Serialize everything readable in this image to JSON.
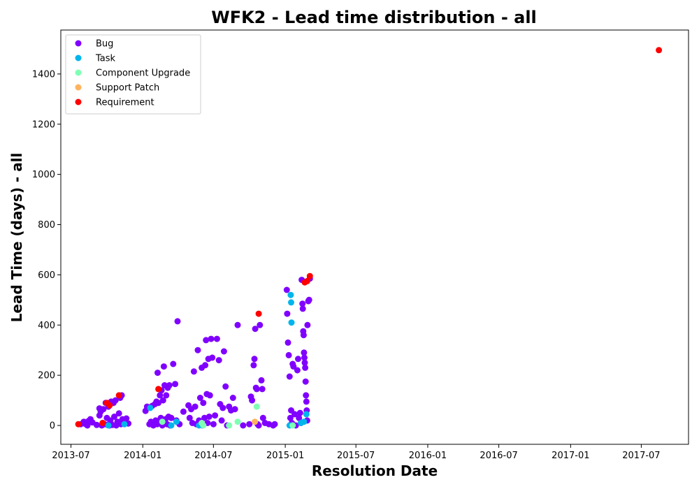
{
  "chart_data": {
    "type": "scatter",
    "title": "WFK2 - Lead time distribution - all",
    "xlabel": "Resolution Date",
    "ylabel": "Lead Time (days) - all",
    "x_is_date": true,
    "xlim": [
      "2013-06-05",
      "2017-10-30"
    ],
    "ylim": [
      -75,
      1575
    ],
    "x_ticks": [
      "2013-07",
      "2014-01",
      "2014-07",
      "2015-01",
      "2015-07",
      "2016-01",
      "2016-07",
      "2017-01",
      "2017-07"
    ],
    "y_ticks": [
      0,
      200,
      400,
      600,
      800,
      1000,
      1200,
      1400
    ],
    "grid": false,
    "legend_position": "top-left",
    "series": [
      {
        "name": "Bug",
        "color": "#8000ff",
        "points": [
          [
            "2013-07-26",
            5
          ],
          [
            "2013-08-03",
            15
          ],
          [
            "2013-08-08",
            5
          ],
          [
            "2013-08-12",
            0
          ],
          [
            "2013-08-15",
            18
          ],
          [
            "2013-08-20",
            25
          ],
          [
            "2013-08-25",
            12
          ],
          [
            "2013-09-05",
            2
          ],
          [
            "2013-09-12",
            40
          ],
          [
            "2013-09-12",
            68
          ],
          [
            "2013-09-15",
            55
          ],
          [
            "2013-09-18",
            0
          ],
          [
            "2013-09-20",
            10
          ],
          [
            "2013-09-22",
            65
          ],
          [
            "2013-09-25",
            5
          ],
          [
            "2013-09-28",
            90
          ],
          [
            "2013-10-01",
            30
          ],
          [
            "2013-10-03",
            2
          ],
          [
            "2013-10-05",
            75
          ],
          [
            "2013-10-08",
            0
          ],
          [
            "2013-10-10",
            20
          ],
          [
            "2013-10-12",
            95
          ],
          [
            "2013-10-15",
            2
          ],
          [
            "2013-10-18",
            90
          ],
          [
            "2013-10-20",
            35
          ],
          [
            "2013-10-23",
            100
          ],
          [
            "2013-10-25",
            0
          ],
          [
            "2013-10-28",
            15
          ],
          [
            "2013-11-01",
            48
          ],
          [
            "2013-11-04",
            110
          ],
          [
            "2013-11-06",
            5
          ],
          [
            "2013-11-08",
            120
          ],
          [
            "2013-11-10",
            25
          ],
          [
            "2013-11-15",
            10
          ],
          [
            "2013-11-20",
            28
          ],
          [
            "2013-11-25",
            8
          ],
          [
            "2014-01-08",
            58
          ],
          [
            "2014-01-12",
            75
          ],
          [
            "2014-01-18",
            5
          ],
          [
            "2014-01-22",
            15
          ],
          [
            "2014-01-25",
            78
          ],
          [
            "2014-01-28",
            0
          ],
          [
            "2014-02-01",
            85
          ],
          [
            "2014-02-03",
            20
          ],
          [
            "2014-02-05",
            95
          ],
          [
            "2014-02-07",
            5
          ],
          [
            "2014-02-08",
            210
          ],
          [
            "2014-02-10",
            90
          ],
          [
            "2014-02-12",
            10
          ],
          [
            "2014-02-14",
            120
          ],
          [
            "2014-02-16",
            30
          ],
          [
            "2014-02-18",
            140
          ],
          [
            "2014-02-20",
            0
          ],
          [
            "2014-02-22",
            100
          ],
          [
            "2014-02-24",
            235
          ],
          [
            "2014-02-26",
            160
          ],
          [
            "2014-02-28",
            25
          ],
          [
            "2014-03-02",
            120
          ],
          [
            "2014-03-04",
            5
          ],
          [
            "2014-03-06",
            150
          ],
          [
            "2014-03-08",
            35
          ],
          [
            "2014-03-10",
            160
          ],
          [
            "2014-03-12",
            0
          ],
          [
            "2014-03-15",
            30
          ],
          [
            "2014-03-20",
            245
          ],
          [
            "2014-03-25",
            165
          ],
          [
            "2014-03-28",
            20
          ],
          [
            "2014-03-31",
            415
          ],
          [
            "2014-04-05",
            5
          ],
          [
            "2014-04-15",
            55
          ],
          [
            "2014-04-28",
            80
          ],
          [
            "2014-05-01",
            30
          ],
          [
            "2014-05-05",
            65
          ],
          [
            "2014-05-08",
            10
          ],
          [
            "2014-05-12",
            215
          ],
          [
            "2014-05-15",
            75
          ],
          [
            "2014-05-18",
            5
          ],
          [
            "2014-05-22",
            300
          ],
          [
            "2014-05-25",
            20
          ],
          [
            "2014-05-28",
            110
          ],
          [
            "2014-06-01",
            230
          ],
          [
            "2014-06-03",
            0
          ],
          [
            "2014-06-05",
            90
          ],
          [
            "2014-06-08",
            30
          ],
          [
            "2014-06-10",
            240
          ],
          [
            "2014-06-12",
            340
          ],
          [
            "2014-06-14",
            125
          ],
          [
            "2014-06-16",
            10
          ],
          [
            "2014-06-18",
            265
          ],
          [
            "2014-06-20",
            35
          ],
          [
            "2014-06-22",
            120
          ],
          [
            "2014-06-25",
            345
          ],
          [
            "2014-06-28",
            270
          ],
          [
            "2014-07-01",
            5
          ],
          [
            "2014-07-05",
            40
          ],
          [
            "2014-07-10",
            345
          ],
          [
            "2014-07-15",
            260
          ],
          [
            "2014-07-18",
            85
          ],
          [
            "2014-07-22",
            20
          ],
          [
            "2014-07-25",
            70
          ],
          [
            "2014-07-28",
            295
          ],
          [
            "2014-08-01",
            155
          ],
          [
            "2014-08-05",
            0
          ],
          [
            "2014-08-10",
            75
          ],
          [
            "2014-08-15",
            60
          ],
          [
            "2014-08-20",
            110
          ],
          [
            "2014-08-25",
            65
          ],
          [
            "2014-09-01",
            400
          ],
          [
            "2014-09-15",
            0
          ],
          [
            "2014-10-01",
            5
          ],
          [
            "2014-10-05",
            115
          ],
          [
            "2014-10-08",
            100
          ],
          [
            "2014-10-12",
            240
          ],
          [
            "2014-10-14",
            265
          ],
          [
            "2014-10-16",
            385
          ],
          [
            "2014-10-18",
            150
          ],
          [
            "2014-10-20",
            145
          ],
          [
            "2014-10-22",
            5
          ],
          [
            "2014-10-25",
            0
          ],
          [
            "2014-10-28",
            400
          ],
          [
            "2014-11-01",
            180
          ],
          [
            "2014-11-03",
            145
          ],
          [
            "2014-11-05",
            30
          ],
          [
            "2014-11-10",
            10
          ],
          [
            "2014-11-20",
            5
          ],
          [
            "2014-12-01",
            0
          ],
          [
            "2014-12-05",
            5
          ],
          [
            "2015-01-05",
            540
          ],
          [
            "2015-01-06",
            445
          ],
          [
            "2015-01-08",
            330
          ],
          [
            "2015-01-10",
            280
          ],
          [
            "2015-01-12",
            195
          ],
          [
            "2015-01-14",
            30
          ],
          [
            "2015-01-16",
            60
          ],
          [
            "2015-01-18",
            10
          ],
          [
            "2015-01-20",
            245
          ],
          [
            "2015-01-22",
            235
          ],
          [
            "2015-01-25",
            45
          ],
          [
            "2015-01-28",
            0
          ],
          [
            "2015-02-01",
            220
          ],
          [
            "2015-02-03",
            265
          ],
          [
            "2015-02-05",
            30
          ],
          [
            "2015-02-08",
            50
          ],
          [
            "2015-02-10",
            10
          ],
          [
            "2015-02-12",
            580
          ],
          [
            "2015-02-14",
            485
          ],
          [
            "2015-02-15",
            465
          ],
          [
            "2015-02-16",
            375
          ],
          [
            "2015-02-17",
            360
          ],
          [
            "2015-02-18",
            290
          ],
          [
            "2015-02-19",
            270
          ],
          [
            "2015-02-20",
            250
          ],
          [
            "2015-02-21",
            230
          ],
          [
            "2015-02-22",
            175
          ],
          [
            "2015-02-23",
            120
          ],
          [
            "2015-02-24",
            95
          ],
          [
            "2015-02-25",
            60
          ],
          [
            "2015-02-26",
            20
          ],
          [
            "2015-02-27",
            400
          ],
          [
            "2015-03-01",
            495
          ],
          [
            "2015-03-03",
            500
          ],
          [
            "2015-03-05",
            585
          ]
        ]
      },
      {
        "name": "Task",
        "color": "#00b5eb",
        "points": [
          [
            "2013-10-05",
            0
          ],
          [
            "2013-11-15",
            5
          ],
          [
            "2014-01-20",
            70
          ],
          [
            "2014-03-15",
            0
          ],
          [
            "2014-03-28",
            15
          ],
          [
            "2014-05-25",
            0
          ],
          [
            "2015-01-12",
            0
          ],
          [
            "2015-01-15",
            520
          ],
          [
            "2015-01-16",
            490
          ],
          [
            "2015-01-17",
            410
          ],
          [
            "2015-02-10",
            10
          ],
          [
            "2015-02-18",
            15
          ],
          [
            "2015-02-24",
            45
          ]
        ]
      },
      {
        "name": "Component Upgrade",
        "color": "#80ffb4",
        "points": [
          [
            "2014-02-20",
            15
          ],
          [
            "2014-06-01",
            10
          ],
          [
            "2014-06-05",
            0
          ],
          [
            "2014-08-10",
            0
          ],
          [
            "2014-09-01",
            15
          ],
          [
            "2014-10-20",
            75
          ],
          [
            "2015-01-20",
            0
          ]
        ]
      },
      {
        "name": "Support Patch",
        "color": "#ffb360",
        "points": [
          [
            "2014-10-15",
            15
          ]
        ]
      },
      {
        "name": "Requirement",
        "color": "#ff0000",
        "points": [
          [
            "2013-07-20",
            5
          ],
          [
            "2013-09-20",
            10
          ],
          [
            "2013-10-01",
            90
          ],
          [
            "2013-10-08",
            80
          ],
          [
            "2013-11-01",
            120
          ],
          [
            "2014-02-10",
            145
          ],
          [
            "2014-10-25",
            445
          ],
          [
            "2015-02-20",
            570
          ],
          [
            "2015-02-26",
            575
          ],
          [
            "2015-03-05",
            595
          ],
          [
            "2017-08-15",
            1495
          ]
        ]
      }
    ]
  }
}
